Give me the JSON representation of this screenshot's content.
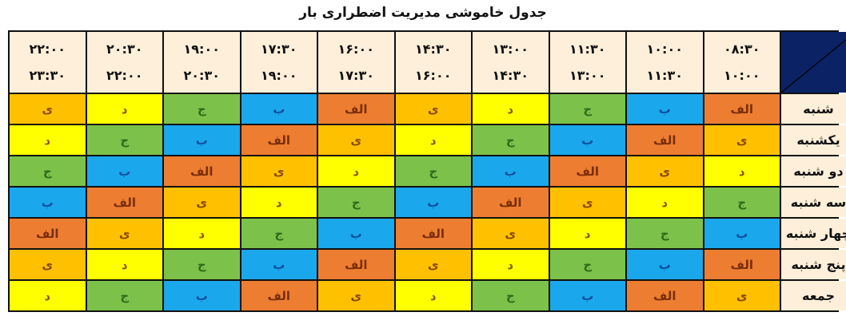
{
  "title": "جدول خاموشی مدیریت اضطراری بار",
  "time_slots": [
    {
      "from": "۰۸:۳۰",
      "to": "۱۰:۰۰"
    },
    {
      "from": "۱۰:۰۰",
      "to": "۱۱:۳۰"
    },
    {
      "from": "۱۱:۳۰",
      "to": "۱۳:۰۰"
    },
    {
      "from": "۱۳:۰۰",
      "to": "۱۴:۳۰"
    },
    {
      "from": "۱۴:۳۰",
      "to": "۱۶:۰۰"
    },
    {
      "from": "۱۶:۰۰",
      "to": "۱۷:۳۰"
    },
    {
      "from": "۱۷:۳۰",
      "to": "۱۹:۰۰"
    },
    {
      "from": "۱۹:۰۰",
      "to": "۲۰:۳۰"
    },
    {
      "from": "۲۰:۳۰",
      "to": "۲۲:۰۰"
    },
    {
      "from": "۲۲:۰۰",
      "to": "۲۳:۳۰"
    }
  ],
  "group_colors": {
    "الف": {
      "bg": "#ED7D31",
      "fg": "#7A2E0A"
    },
    "ب": {
      "bg": "#1AA7EC",
      "fg": "#0B4FA0"
    },
    "ج": {
      "bg": "#7CC24A",
      "fg": "#2E6B1A"
    },
    "د": {
      "bg": "#FFFF00",
      "fg": "#8A5A00"
    },
    "ی": {
      "bg": "#FFC000",
      "fg": "#8A4A00"
    }
  },
  "rows": [
    {
      "day": "شنبه",
      "groups": [
        "الف",
        "ب",
        "ج",
        "د",
        "ی",
        "الف",
        "ب",
        "ج",
        "د",
        "ی"
      ]
    },
    {
      "day": "یکشنبه",
      "groups": [
        "ی",
        "الف",
        "ب",
        "ج",
        "د",
        "ی",
        "الف",
        "ب",
        "ج",
        "د"
      ]
    },
    {
      "day": "دو شنبه",
      "groups": [
        "د",
        "ی",
        "الف",
        "ب",
        "ج",
        "د",
        "ی",
        "الف",
        "ب",
        "ج"
      ]
    },
    {
      "day": "سه شنبه",
      "groups": [
        "ج",
        "د",
        "ی",
        "الف",
        "ب",
        "ج",
        "د",
        "ی",
        "الف",
        "ب"
      ]
    },
    {
      "day": "چهار شنبه",
      "groups": [
        "ب",
        "ج",
        "د",
        "ی",
        "الف",
        "ب",
        "ج",
        "د",
        "ی",
        "الف"
      ]
    },
    {
      "day": "پنج شنبه",
      "groups": [
        "الف",
        "ب",
        "ج",
        "د",
        "ی",
        "الف",
        "ب",
        "ج",
        "د",
        "ی"
      ]
    },
    {
      "day": "جمعه",
      "groups": [
        "ی",
        "الف",
        "ب",
        "ج",
        "د",
        "ی",
        "الف",
        "ب",
        "ج",
        "د"
      ]
    }
  ]
}
